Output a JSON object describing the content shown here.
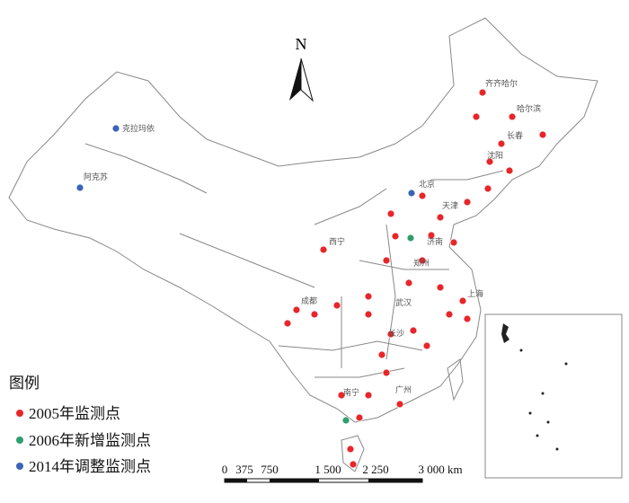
{
  "north": "N",
  "legend": {
    "title": "图例",
    "items": [
      "2005年监测点",
      "2006年新增监测点",
      "2014年调整监测点"
    ]
  },
  "scale": {
    "labels": [
      "0",
      "375",
      "750",
      "1 500",
      "2 250",
      "3 000 km"
    ]
  },
  "cities": [
    "克拉玛依",
    "阿克苏",
    "齐齐哈尔",
    "哈尔滨",
    "长春",
    "沈阳",
    "北京",
    "天津",
    "济南",
    "郑州",
    "上海",
    "成都",
    "武汉",
    "长沙",
    "广州",
    "南宁",
    "西宁"
  ]
}
